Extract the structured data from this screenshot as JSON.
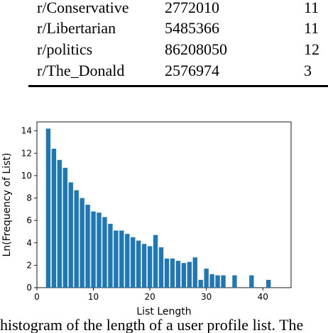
{
  "table": {
    "rows": [
      {
        "subreddit": "r/Conservative",
        "count": "2772010",
        "value": "11"
      },
      {
        "subreddit": "r/Libertarian",
        "count": "5485366",
        "value": "11"
      },
      {
        "subreddit": "r/politics",
        "count": "86208050",
        "value": "12"
      },
      {
        "subreddit": "r/The_Donald",
        "count": "2576974",
        "value": "3"
      }
    ]
  },
  "chart_data": {
    "type": "bar",
    "xlabel": "List Length",
    "ylabel": "Ln(Frequency of List)",
    "xlim": [
      0,
      45
    ],
    "ylim": [
      0,
      14.8
    ],
    "xticks": [
      0,
      10,
      20,
      30,
      40
    ],
    "yticks": [
      0,
      2,
      4,
      6,
      8,
      10,
      12,
      14
    ],
    "color": "#1f77b4",
    "x": [
      2,
      3,
      4,
      5,
      6,
      7,
      8,
      9,
      10,
      11,
      12,
      13,
      14,
      15,
      16,
      17,
      18,
      19,
      20,
      21,
      22,
      23,
      24,
      25,
      26,
      27,
      28,
      29,
      30,
      31,
      32,
      33,
      35,
      38,
      41
    ],
    "values": [
      14.2,
      12.4,
      11.4,
      10.7,
      9.4,
      8.7,
      8.0,
      7.4,
      6.8,
      6.7,
      6.3,
      5.7,
      5.1,
      5.1,
      4.8,
      4.5,
      4.2,
      3.9,
      3.7,
      4.7,
      3.6,
      2.6,
      2.6,
      2.4,
      2.2,
      2.3,
      2.7,
      0.7,
      1.7,
      1.2,
      1.1,
      1.1,
      1.1,
      1.1,
      0.7
    ]
  },
  "caption": "histogram of the length of a user profile list. The"
}
